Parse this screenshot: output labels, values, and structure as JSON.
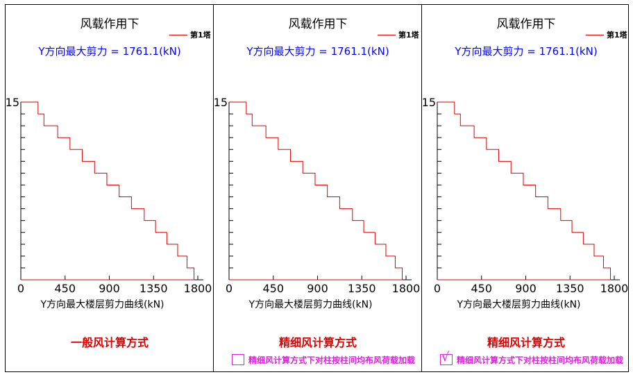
{
  "chart_data": [
    {
      "type": "line",
      "title": "风载作用下",
      "legend": [
        "第1塔"
      ],
      "annotation": "Y方向最大剪力 = 1761.1(kN)",
      "xlabel": "Y方向最大楼层剪力曲线(kN)",
      "ylabel": "",
      "xticks": [
        0,
        450,
        900,
        1350,
        1800
      ],
      "ytick_label": "15",
      "xlim": [
        0,
        1800
      ],
      "ylim": [
        0,
        15
      ],
      "series": [
        {
          "name": "第1塔",
          "color": "#e00000",
          "floors": [
            1,
            2,
            3,
            4,
            5,
            6,
            7,
            8,
            9,
            10,
            11,
            12,
            13,
            14,
            15
          ],
          "values": [
            1761.1,
            1690,
            1595,
            1485,
            1370,
            1255,
            1125,
            1000,
            875,
            750,
            625,
            500,
            375,
            235,
            175
          ]
        }
      ],
      "method": "一般风计算方式",
      "option": null
    },
    {
      "type": "line",
      "title": "风载作用下",
      "legend": [
        "第1塔"
      ],
      "annotation": "Y方向最大剪力 = 1761.1(kN)",
      "xlabel": "Y方向最大楼层剪力曲线(kN)",
      "ylabel": "",
      "xticks": [
        0,
        450,
        900,
        1350,
        1800
      ],
      "ytick_label": "15",
      "xlim": [
        0,
        1800
      ],
      "ylim": [
        0,
        15
      ],
      "series": [
        {
          "name": "第1塔",
          "color": "#e00000",
          "floors": [
            1,
            2,
            3,
            4,
            5,
            6,
            7,
            8,
            9,
            10,
            11,
            12,
            13,
            14,
            15
          ],
          "values": [
            1761.1,
            1690,
            1595,
            1485,
            1370,
            1255,
            1125,
            1000,
            875,
            750,
            625,
            500,
            375,
            235,
            175
          ]
        }
      ],
      "method": "精细风计算方式",
      "option": {
        "label": "精细风计算方式下对柱按柱间均布风荷载加载",
        "checked": false
      }
    },
    {
      "type": "line",
      "title": "风载作用下",
      "legend": [
        "第1塔"
      ],
      "annotation": "Y方向最大剪力 = 1761.1(kN)",
      "xlabel": "Y方向最大楼层剪力曲线(kN)",
      "ylabel": "",
      "xticks": [
        0,
        450,
        900,
        1350,
        1800
      ],
      "ytick_label": "15",
      "xlim": [
        0,
        1800
      ],
      "ylim": [
        0,
        15
      ],
      "series": [
        {
          "name": "第1塔",
          "color": "#e00000",
          "floors": [
            1,
            2,
            3,
            4,
            5,
            6,
            7,
            8,
            9,
            10,
            11,
            12,
            13,
            14,
            15
          ],
          "values": [
            1761.1,
            1690,
            1595,
            1485,
            1370,
            1255,
            1125,
            1000,
            875,
            750,
            625,
            500,
            375,
            235,
            175
          ]
        }
      ],
      "method": "精细风计算方式",
      "option": {
        "label": "精细风计算方式下对柱按柱间均布风荷载加载",
        "checked": true,
        "check_glyph": "√"
      }
    }
  ]
}
